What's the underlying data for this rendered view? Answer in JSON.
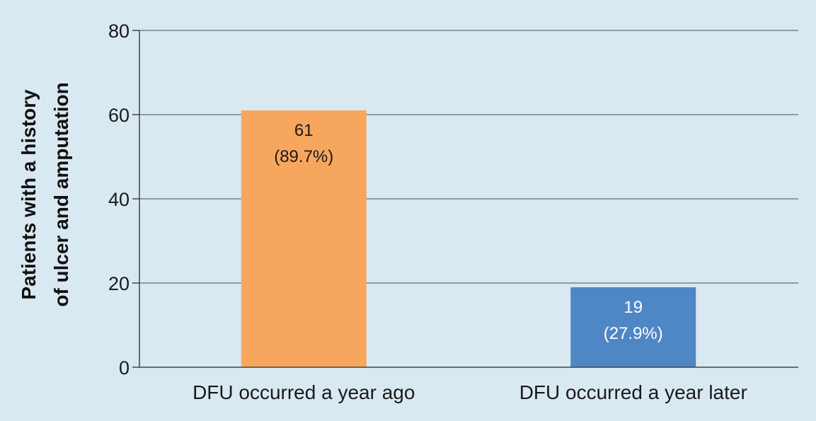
{
  "chart_data": {
    "type": "bar",
    "categories": [
      "DFU occurred a year ago",
      "DFU occurred a year later"
    ],
    "values": [
      61,
      19
    ],
    "value_labels": [
      "61",
      "19"
    ],
    "percent_labels": [
      "(89.7%)",
      "(27.9%)"
    ],
    "bar_colors": [
      "#f7a65e",
      "#4f86c6"
    ],
    "bar_label_colors": [
      "#1a1a1a",
      "#ffffff"
    ],
    "ylabel_lines": [
      "Patients with a history",
      "of ulcer and amputation"
    ],
    "xlabel": "",
    "title": "",
    "ylim": [
      0,
      80
    ],
    "yticks": [
      0,
      20,
      40,
      60,
      80
    ],
    "grid": true,
    "colors": {
      "background": "#d9e9f2",
      "gridline": "#6b6b6b",
      "axis": "#444444"
    }
  }
}
